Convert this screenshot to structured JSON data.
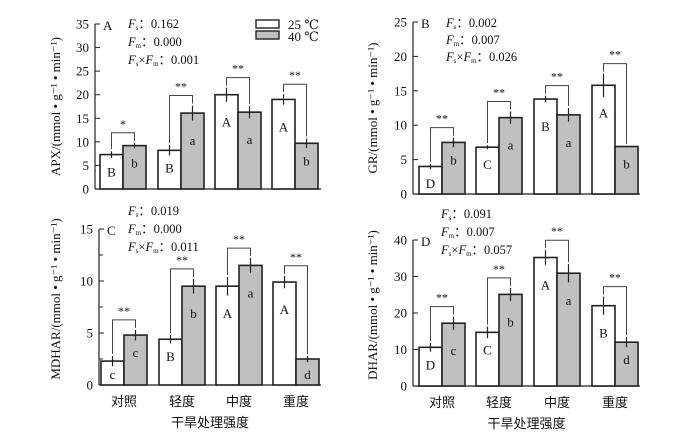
{
  "colors": {
    "bar_25": "#ffffff",
    "bar_40": "#c0c0c0",
    "stroke": "#222222"
  },
  "chart_data": [
    {
      "type": "bar",
      "panel": "A",
      "ylabel": "APX/(mmol • g⁻¹ • min⁻¹)",
      "ylim": [
        0,
        35
      ],
      "yticks": [
        0,
        5,
        10,
        15,
        20,
        25,
        30,
        35
      ],
      "categories": [
        "对照",
        "轻度",
        "中度",
        "重度"
      ],
      "xlabel": "",
      "series": [
        {
          "name": "25 ℃",
          "values": [
            7.3,
            8.2,
            20.0,
            19.0
          ],
          "errors": [
            0.7,
            1.1,
            1.5,
            1.1
          ],
          "letters": [
            "B",
            "B",
            "A",
            "A"
          ]
        },
        {
          "name": "40 ℃",
          "values": [
            9.2,
            16.1,
            16.3,
            9.7
          ],
          "errors": [
            0.6,
            1.6,
            1.3,
            1.0
          ],
          "letters": [
            "b",
            "a",
            "a",
            "b"
          ]
        }
      ],
      "significance": [
        "*",
        "**",
        "**",
        "**"
      ],
      "stats": {
        "fs_label": "F",
        "fs_sub": "s",
        "fs_value": "：0.162",
        "fm_label": "F",
        "fm_sub": "m",
        "fm_value": "：0.000",
        "fx_value": "：0.001"
      },
      "legend": {
        "items": [
          "25 ℃",
          "40 ℃"
        ],
        "position": "top-right"
      }
    },
    {
      "type": "bar",
      "panel": "B",
      "ylabel": "GR/(mmol • g⁻¹ • min⁻¹)",
      "ylim": [
        0,
        25
      ],
      "yticks": [
        0,
        5,
        10,
        15,
        20,
        25
      ],
      "categories": [
        "对照",
        "轻度",
        "中度",
        "重度"
      ],
      "xlabel": "",
      "series": [
        {
          "name": "25 ℃",
          "values": [
            4.0,
            6.8,
            13.8,
            15.8
          ],
          "errors": [
            0.4,
            0.3,
            0.5,
            1.7
          ],
          "letters": [
            "D",
            "C",
            "B",
            "A"
          ]
        },
        {
          "name": "40 ℃",
          "values": [
            7.5,
            11.1,
            11.5,
            6.9
          ],
          "errors": [
            0.7,
            0.9,
            1.0,
            0.1
          ],
          "letters": [
            "b",
            "a",
            "a",
            "b"
          ]
        }
      ],
      "significance": [
        "**",
        "**",
        "**",
        "**"
      ],
      "stats": {
        "fs_label": "F",
        "fs_sub": "s",
        "fs_value": "：0.002",
        "fm_label": "F",
        "fm_sub": "m",
        "fm_value": "：0.007",
        "fx_value": "：0.026"
      }
    },
    {
      "type": "bar",
      "panel": "C",
      "ylabel": "MDHAR/(mmol • g⁻¹ • min⁻¹)",
      "ylim": [
        0,
        15
      ],
      "yticks": [
        0,
        5,
        10,
        15
      ],
      "minor_yticks": [
        2.5,
        7.5,
        12.5
      ],
      "categories": [
        "对照",
        "轻度",
        "中度",
        "重度"
      ],
      "xlabel": "干旱处理强度",
      "series": [
        {
          "name": "25 ℃",
          "values": [
            2.3,
            4.4,
            9.5,
            9.9
          ],
          "errors": [
            0.5,
            0.4,
            0.9,
            0.6
          ],
          "letters": [
            "c",
            "B",
            "A",
            "A"
          ]
        },
        {
          "name": "40 ℃",
          "values": [
            4.8,
            9.5,
            11.5,
            2.5
          ],
          "errors": [
            0.5,
            0.7,
            0.7,
            0.3
          ],
          "letters": [
            "c",
            "b",
            "a",
            "d"
          ]
        }
      ],
      "significance": [
        "**",
        "**",
        "**",
        "**"
      ],
      "stats": {
        "fs_label": "F",
        "fs_sub": "s",
        "fs_value": "：0.019",
        "fm_label": "F",
        "fm_sub": "m",
        "fm_value": "：0.000",
        "fx_value": "：0.011"
      }
    },
    {
      "type": "bar",
      "panel": "D",
      "ylabel": "DHAR/(mmol • g⁻¹ • min⁻¹)",
      "ylim": [
        0,
        40
      ],
      "yticks": [
        0,
        10,
        20,
        30,
        40
      ],
      "categories": [
        "对照",
        "轻度",
        "中度",
        "重度"
      ],
      "xlabel": "干旱处理强度",
      "series": [
        {
          "name": "25 ℃",
          "values": [
            10.6,
            14.7,
            35.2,
            22.0
          ],
          "errors": [
            1.2,
            1.6,
            2.0,
            2.5
          ],
          "letters": [
            "D",
            "C",
            "A",
            "B"
          ]
        },
        {
          "name": "40 ℃",
          "values": [
            17.2,
            25.1,
            30.9,
            12.0
          ],
          "errors": [
            1.8,
            1.8,
            2.5,
            1.4
          ],
          "letters": [
            "c",
            "b",
            "a",
            "d"
          ]
        }
      ],
      "significance": [
        "**",
        "**",
        "**",
        "**"
      ],
      "stats": {
        "fs_label": "F",
        "fs_sub": "s",
        "fs_value": "：0.091",
        "fm_label": "F",
        "fm_sub": "m",
        "fm_value": "：0.007",
        "fx_value": "：0.057"
      }
    }
  ]
}
